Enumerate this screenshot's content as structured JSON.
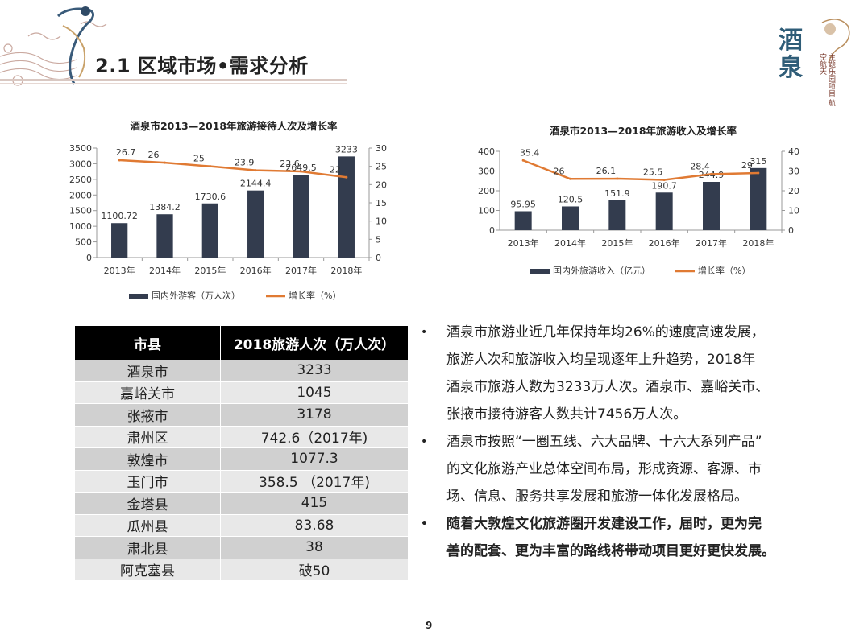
{
  "header": {
    "title": "2.1 区域市场•需求分析",
    "logo_text": [
      "酒",
      "泉"
    ],
    "logo_sub": "主题乐园项目 航空航天"
  },
  "chart_data": [
    {
      "type": "bar",
      "title": "酒泉市2013—2018年旅游接待人次及增长率",
      "categories": [
        "2013年",
        "2014年",
        "2015年",
        "2016年",
        "2017年",
        "2018年"
      ],
      "series": [
        {
          "name": "国内外游客（万人次）",
          "type": "bar",
          "axis": "left",
          "values": [
            1100.72,
            1384.2,
            1730.6,
            2144.4,
            2649.5,
            3233
          ],
          "color": "#333c4e"
        },
        {
          "name": "增长率（%）",
          "type": "line",
          "axis": "right",
          "values": [
            26.7,
            26,
            25,
            23.9,
            23.6,
            22
          ],
          "color": "#e07a33"
        }
      ],
      "y_left": {
        "min": 0,
        "max": 3500,
        "ticks": [
          0,
          500,
          1000,
          1500,
          2000,
          2500,
          3000,
          3500
        ]
      },
      "y_right": {
        "min": 0,
        "max": 30,
        "ticks": [
          0,
          5,
          10,
          15,
          20,
          25,
          30
        ]
      },
      "legend": "bottom",
      "grid": false
    },
    {
      "type": "bar",
      "title": "酒泉市2013—2018年旅游收入及增长率",
      "categories": [
        "2013年",
        "2014年",
        "2015年",
        "2016年",
        "2017年",
        "2018年"
      ],
      "series": [
        {
          "name": "国内外旅游收入（亿元）",
          "type": "bar",
          "axis": "left",
          "values": [
            95.95,
            120.5,
            151.9,
            190.7,
            244.9,
            315
          ],
          "color": "#333c4e"
        },
        {
          "name": "增长率（%）",
          "type": "line",
          "axis": "right",
          "values": [
            35.4,
            26,
            26.1,
            25.5,
            28.4,
            29
          ],
          "color": "#e07a33"
        }
      ],
      "y_left": {
        "min": 0,
        "max": 400,
        "ticks": [
          0,
          100,
          200,
          300,
          400
        ]
      },
      "y_right": {
        "min": 0,
        "max": 40,
        "ticks": [
          0,
          10,
          20,
          30,
          40
        ]
      },
      "legend": "bottom",
      "grid": false
    }
  ],
  "table": {
    "headers": [
      "市县",
      "2018旅游人次（万人次）"
    ],
    "rows": [
      [
        "酒泉市",
        "3233"
      ],
      [
        "嘉峪关市",
        "1045"
      ],
      [
        "张掖市",
        "3178"
      ],
      [
        "肃州区",
        "742.6（2017年)"
      ],
      [
        "敦煌市",
        "1077.3"
      ],
      [
        "玉门市",
        "358.5 （2017年)"
      ],
      [
        "金塔县",
        "415"
      ],
      [
        "瓜州县",
        "83.68"
      ],
      [
        "肃北县",
        "38"
      ],
      [
        "阿克塞县",
        "破50"
      ]
    ]
  },
  "bullets": [
    {
      "lines": [
        "酒泉市旅游业近几年保持年均26%的速度高速发展，",
        "旅游人次和旅游收入均呈现逐年上升趋势，2018年",
        "酒泉市旅游人数为3233万人次。酒泉市、嘉峪关市、",
        "张掖市接待游客人数共计7456万人次。"
      ],
      "bold": false
    },
    {
      "lines": [
        "酒泉市按照“一圈五线、六大品牌、十六大系列产品”",
        "的文化旅游产业总体空间布局，形成资源、客源、市",
        "场、信息、服务共享发展和旅游一体化发展格局。"
      ],
      "bold": false
    },
    {
      "lines": [
        "随着大敦煌文化旅游圈开发建设工作，届时，更为完",
        "善的配套、更为丰富的路线将带动项目更好更快发展。"
      ],
      "bold": true
    }
  ],
  "page_number": "9",
  "colors": {
    "bar": "#333c4e",
    "line": "#e07a33",
    "header_black": "#000000"
  }
}
